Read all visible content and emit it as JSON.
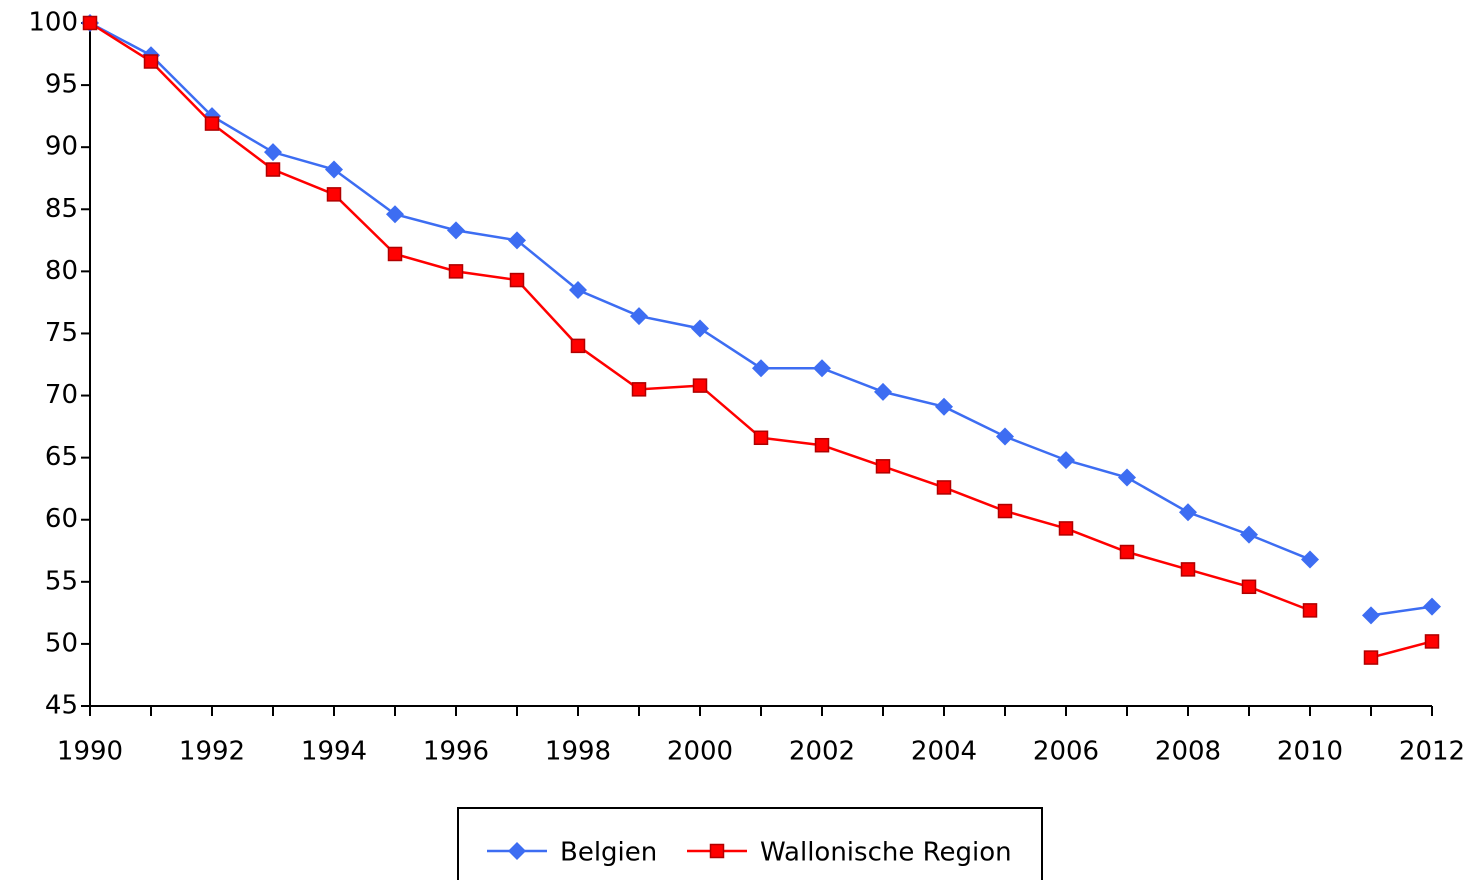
{
  "chart_data": {
    "type": "line",
    "x": [
      1990,
      1991,
      1992,
      1993,
      1994,
      1995,
      1996,
      1997,
      1998,
      1999,
      2000,
      2001,
      2002,
      2003,
      2004,
      2005,
      2006,
      2007,
      2008,
      2009,
      2010,
      2011,
      2012
    ],
    "series": [
      {
        "name": "Belgien",
        "color": "#3d6df2",
        "marker": "diamond",
        "values": [
          100,
          97.4,
          92.5,
          89.6,
          88.2,
          84.6,
          83.3,
          82.5,
          78.5,
          76.4,
          75.4,
          72.2,
          72.2,
          70.3,
          69.1,
          66.7,
          64.8,
          63.4,
          60.6,
          58.8,
          56.8,
          52.3,
          53.0
        ]
      },
      {
        "name": "Wallonische Region",
        "color": "#ff0000",
        "marker": "square",
        "values": [
          100,
          96.9,
          91.9,
          88.2,
          86.2,
          81.4,
          80.0,
          79.3,
          74.0,
          70.5,
          70.8,
          66.6,
          66.0,
          64.3,
          62.6,
          60.7,
          59.3,
          57.4,
          56.0,
          54.6,
          52.7,
          48.9,
          50.2
        ]
      }
    ],
    "line_break_after": [
      2010
    ],
    "xlim": [
      1990,
      2012
    ],
    "xticks": [
      1990,
      1992,
      1994,
      1996,
      1998,
      2000,
      2002,
      2004,
      2006,
      2008,
      2010,
      2012
    ],
    "xminorticks": [
      1991,
      1993,
      1995,
      1997,
      1999,
      2001,
      2003,
      2005,
      2007,
      2009,
      2011
    ],
    "ylim": [
      45,
      100
    ],
    "yticks": [
      45,
      50,
      55,
      60,
      65,
      70,
      75,
      80,
      85,
      90,
      95,
      100
    ],
    "grid": false,
    "legend": "bottom"
  }
}
